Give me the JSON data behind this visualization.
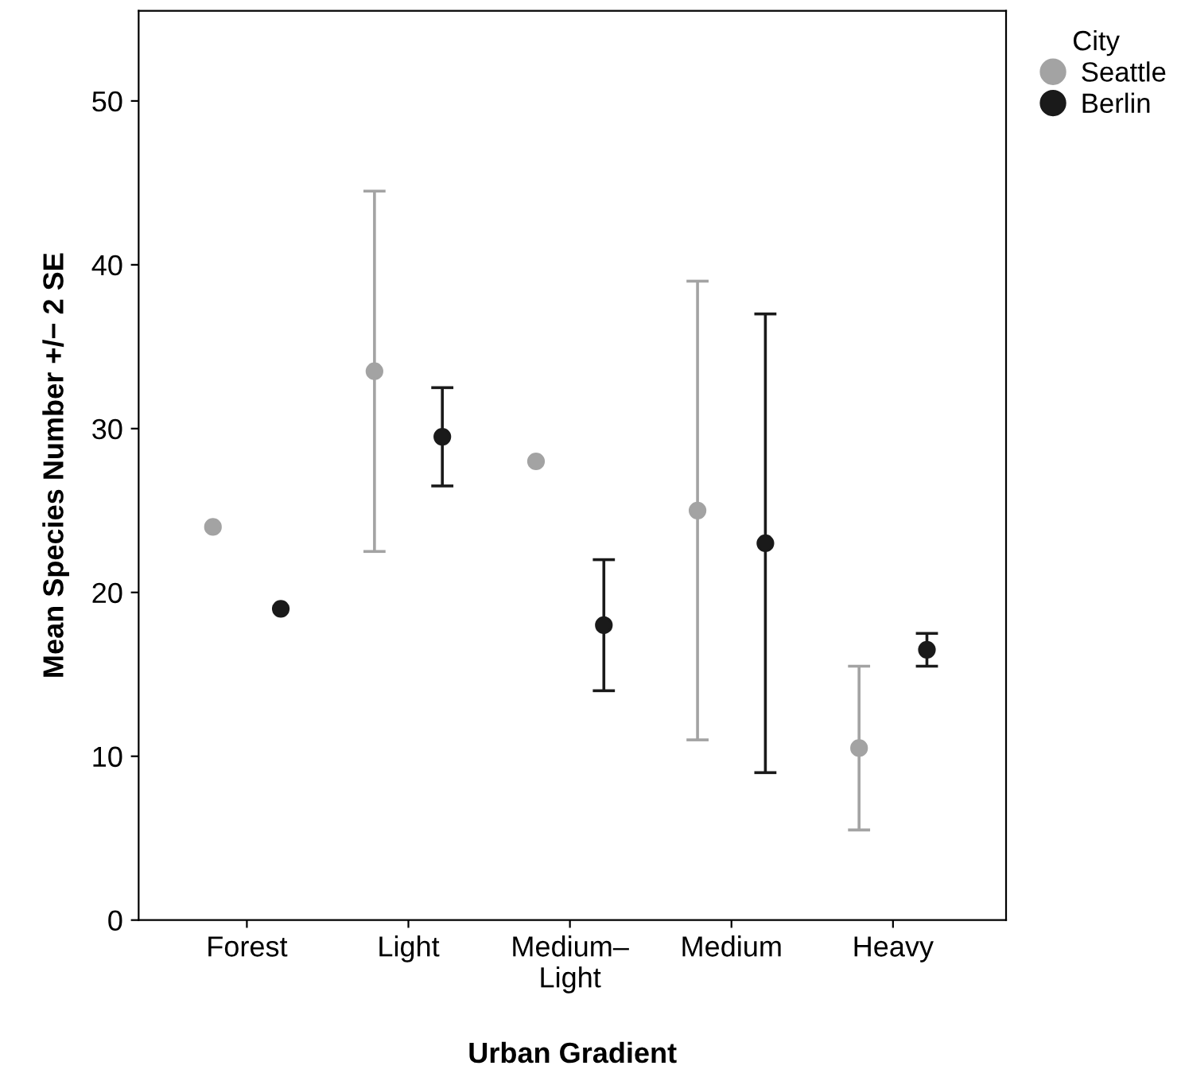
{
  "chart_data": {
    "type": "scatter",
    "xlabel": "Urban Gradient",
    "ylabel": "Mean Species Number +/− 2 SE",
    "legend_title": "City",
    "categories": [
      "Forest",
      "Light",
      "Medium–\nLight",
      "Medium",
      "Heavy"
    ],
    "series": [
      {
        "name": "Seattle",
        "color": "#a3a3a3",
        "values": [
          24,
          33.5,
          28,
          25,
          10.5
        ],
        "errors": [
          null,
          [
            22.5,
            44.5
          ],
          null,
          [
            11,
            39
          ],
          [
            5.5,
            15.5
          ]
        ]
      },
      {
        "name": "Berlin",
        "color": "#1a1a1a",
        "values": [
          19,
          29.5,
          18,
          23,
          16.5
        ],
        "errors": [
          null,
          [
            26.5,
            32.5
          ],
          [
            14,
            22
          ],
          [
            9,
            37
          ],
          [
            15.5,
            17.5
          ]
        ]
      }
    ],
    "ylim": [
      0,
      55.5
    ],
    "yticks": [
      0,
      10,
      20,
      30,
      40,
      50
    ],
    "marker": "circle",
    "legend": "top right",
    "grid": false
  }
}
